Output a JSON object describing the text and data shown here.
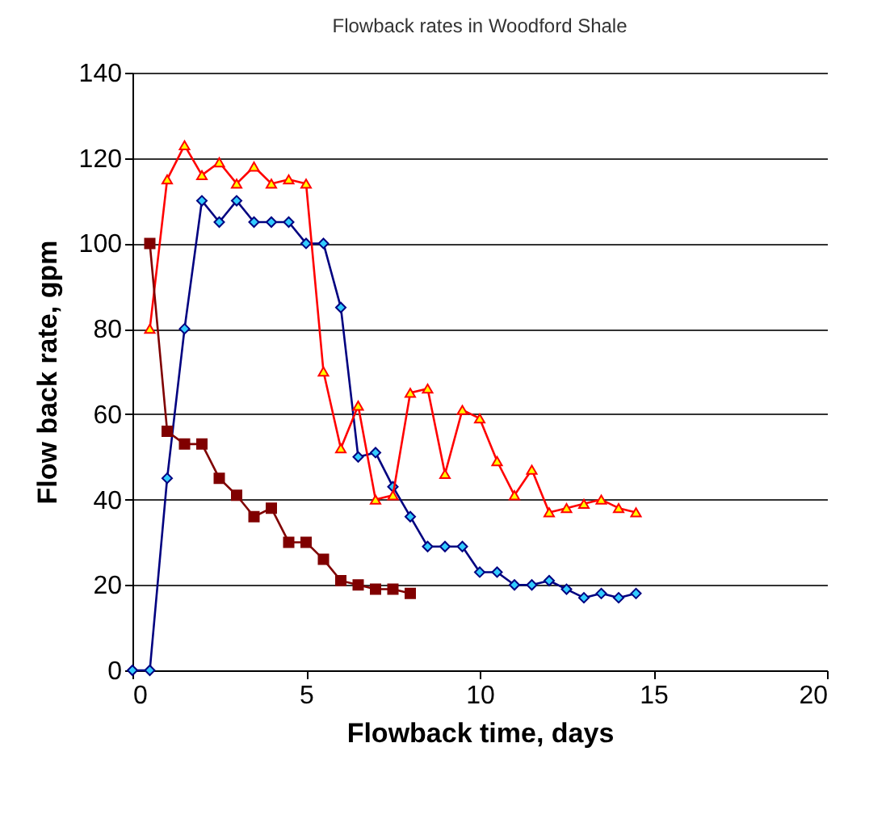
{
  "chart_data": {
    "type": "line",
    "title": "Flowback rates in Woodford Shale",
    "xlabel": "Flowback time, days",
    "ylabel": "Flow back rate, gpm",
    "xlim": [
      0,
      20
    ],
    "xticks": [
      0,
      5,
      10,
      15,
      20
    ],
    "ylim": [
      0,
      140
    ],
    "yticks": [
      0,
      20,
      40,
      60,
      80,
      100,
      120,
      140
    ],
    "grid": "y",
    "series": [
      {
        "color": "#000080",
        "marker": "diamond",
        "x": [
          0,
          0.5,
          1,
          1.5,
          2,
          2.5,
          3,
          3.5,
          4,
          4.5,
          5,
          5.5,
          6,
          6.5,
          7,
          7.5,
          8,
          8.5,
          9,
          9.5,
          10,
          10.5,
          11,
          11.5,
          12,
          12.5,
          13,
          13.5,
          14,
          14.5
        ],
        "values": [
          0,
          0,
          45,
          80,
          110,
          105,
          110,
          105,
          105,
          105,
          100,
          100,
          85,
          50,
          51,
          43,
          36,
          29,
          29,
          29,
          23,
          23,
          20,
          20,
          21,
          19,
          17,
          18,
          17,
          18
        ]
      },
      {
        "color": "#ff0000",
        "marker": "triangle",
        "x": [
          0.5,
          1,
          1.5,
          2,
          2.5,
          3,
          3.5,
          4,
          4.5,
          5,
          5.5,
          6,
          6.5,
          7,
          7.5,
          8,
          8.5,
          9,
          9.5,
          10,
          10.5,
          11,
          11.5,
          12,
          12.5,
          13,
          13.5,
          14,
          14.5
        ],
        "values": [
          80,
          115,
          123,
          116,
          119,
          114,
          118,
          114,
          115,
          114,
          70,
          52,
          62,
          40,
          41,
          65,
          66,
          46,
          61,
          59,
          49,
          41,
          47,
          37,
          38,
          39,
          40,
          38,
          37
        ]
      },
      {
        "color": "#800000",
        "marker": "square",
        "x": [
          0.5,
          1,
          1.5,
          2,
          2.5,
          3,
          3.5,
          4,
          4.5,
          5,
          5.5,
          6,
          6.5,
          7,
          7.5,
          8
        ],
        "values": [
          100,
          56,
          53,
          53,
          45,
          41,
          36,
          38,
          30,
          30,
          26,
          21,
          20,
          19,
          19,
          18
        ]
      }
    ]
  }
}
